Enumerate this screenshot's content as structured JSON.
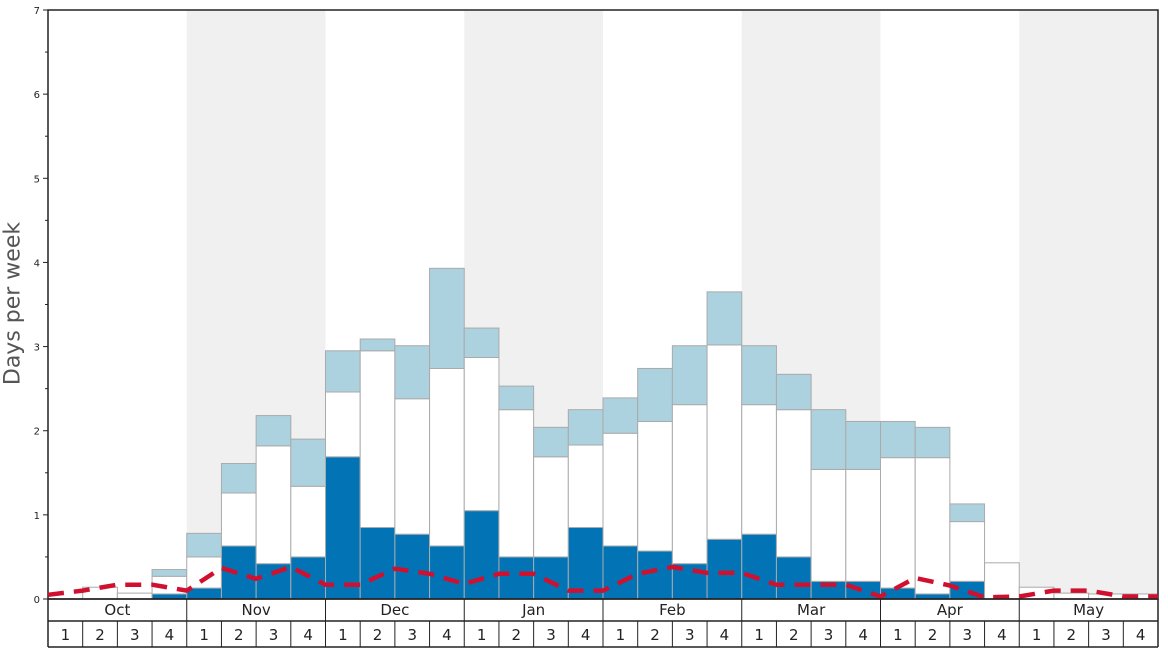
{
  "chart_data": {
    "type": "bar",
    "ylabel": "Days per week",
    "ylim": [
      0,
      7
    ],
    "y_ticks": [
      "0",
      "1",
      "2",
      "3",
      "4",
      "5",
      "6",
      "7"
    ],
    "months": [
      "Oct",
      "Nov",
      "Dec",
      "Jan",
      "Feb",
      "Mar",
      "Apr",
      "May"
    ],
    "weeks": [
      "1",
      "2",
      "3",
      "4"
    ],
    "stacked": true,
    "series": [
      {
        "color": "#0274b6",
        "values": [
          0,
          0,
          0,
          0.06,
          0.13,
          0.63,
          0.42,
          0.5,
          1.69,
          0.85,
          0.77,
          0.63,
          1.05,
          0.5,
          0.5,
          0.85,
          0.63,
          0.57,
          0.42,
          0.71,
          0.77,
          0.5,
          0.21,
          0.21,
          0.13,
          0.06,
          0.21,
          0,
          0,
          0,
          0,
          0
        ]
      },
      {
        "color": "#ffffff",
        "values": [
          0,
          0.14,
          0.07,
          0.21,
          0.37,
          0.63,
          1.4,
          0.84,
          0.77,
          2.1,
          1.61,
          2.11,
          1.82,
          1.75,
          1.19,
          0.98,
          1.34,
          1.54,
          1.89,
          2.31,
          1.54,
          1.75,
          1.33,
          1.33,
          1.55,
          1.62,
          0.71,
          0.43,
          0.14,
          0.07,
          0.06,
          0.06
        ]
      },
      {
        "color": "#add2df",
        "values": [
          0,
          0,
          0,
          0.08,
          0.28,
          0.35,
          0.36,
          0.56,
          0.49,
          0.14,
          0.63,
          1.19,
          0.35,
          0.28,
          0.35,
          0.42,
          0.42,
          0.63,
          0.7,
          0.63,
          0.7,
          0.42,
          0.71,
          0.57,
          0.43,
          0.36,
          0.21,
          0,
          0,
          0,
          0,
          0
        ]
      }
    ],
    "trend_line": {
      "color": "#d0102f",
      "values": [
        0.05,
        0.1,
        0.17,
        0.17,
        0.1,
        0.37,
        0.24,
        0.38,
        0.17,
        0.17,
        0.36,
        0.3,
        0.18,
        0.3,
        0.3,
        0.1,
        0.1,
        0.3,
        0.38,
        0.31,
        0.31,
        0.17,
        0.17,
        0.17,
        0.03,
        0.25,
        0.16,
        0.02,
        0.03,
        0.1,
        0.1,
        0.03,
        0.03
      ]
    },
    "shaded_months": [
      "Nov",
      "Jan",
      "Mar",
      "May"
    ],
    "grid": false
  }
}
